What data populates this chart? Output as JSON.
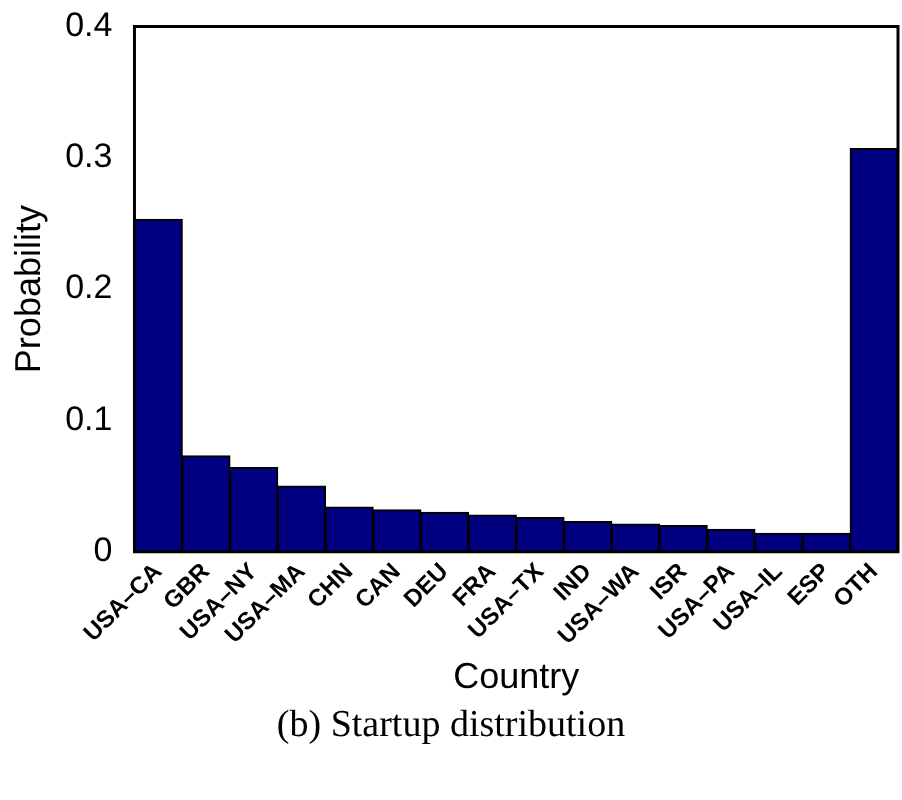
{
  "chart_data": {
    "type": "bar",
    "xlabel": "Country",
    "ylabel": "Probability",
    "annotations": [
      "(b) Startup distribution"
    ],
    "categories": [
      "USA–CA",
      "GBR",
      "USA–NY",
      "USA–MA",
      "CHN",
      "CAN",
      "DEU",
      "FRA",
      "USA–TX",
      "IND",
      "USA–WA",
      "ISR",
      "USA–PA",
      "USA–IL",
      "ESP",
      "OTH"
    ],
    "values": [
      0.253,
      0.073,
      0.064,
      0.05,
      0.034,
      0.032,
      0.03,
      0.028,
      0.026,
      0.023,
      0.021,
      0.02,
      0.017,
      0.014,
      0.014,
      0.307
    ],
    "color": "#000080",
    "ylim": [
      0,
      0.4
    ],
    "yticks": [
      0,
      0.1,
      0.2,
      0.3,
      0.4
    ],
    "grid": false,
    "legend": false
  }
}
